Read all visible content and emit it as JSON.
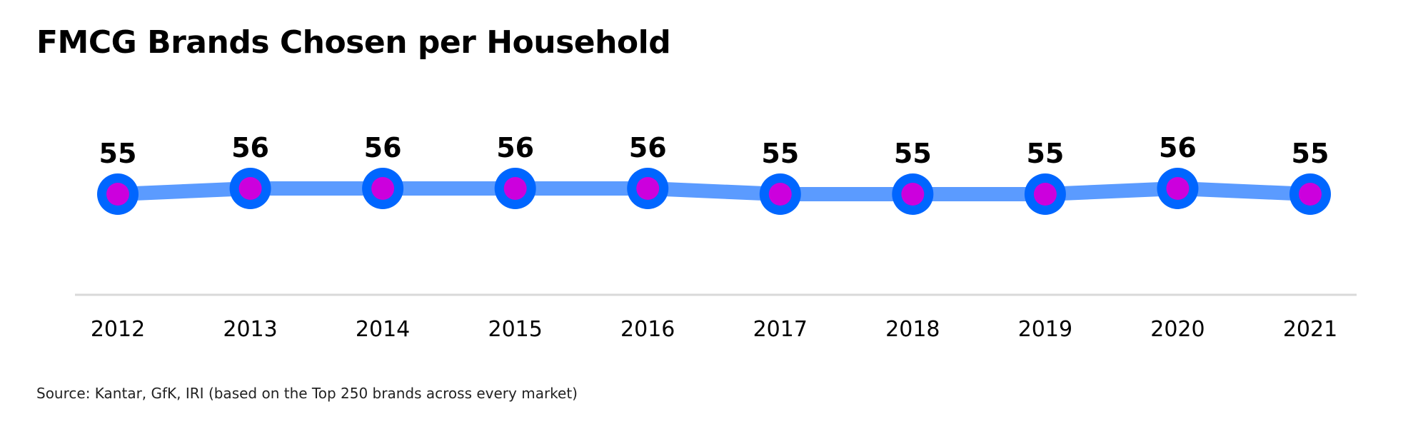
{
  "chart_data": {
    "type": "line",
    "title": "FMCG Brands Chosen per Household",
    "categories": [
      "2012",
      "2013",
      "2014",
      "2015",
      "2016",
      "2017",
      "2018",
      "2019",
      "2020",
      "2021"
    ],
    "values": [
      55,
      56,
      56,
      56,
      56,
      55,
      55,
      55,
      56,
      55
    ],
    "data_labels": [
      "55",
      "56",
      "56",
      "56",
      "56",
      "55",
      "55",
      "55",
      "56",
      "55"
    ],
    "xlabel": "",
    "ylabel": "",
    "grid": false,
    "legend": "none",
    "y_axis_visible": false,
    "source": "Source: Kantar, GfK, IRI (based on the Top 250 brands across every market)",
    "colors": {
      "line": "#5B9BFF",
      "marker_outer": "#0066FF",
      "marker_inner": "#CC00DD",
      "baseline": "#D9D9D9",
      "text": "#000000"
    }
  }
}
